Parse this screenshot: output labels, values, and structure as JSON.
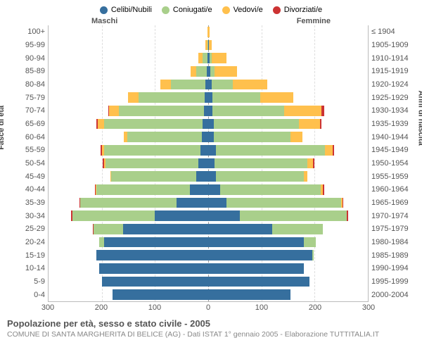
{
  "legend": {
    "items": [
      {
        "label": "Celibi/Nubili",
        "color": "#366f9e"
      },
      {
        "label": "Coniugati/e",
        "color": "#a9cf8b"
      },
      {
        "label": "Vedovi/e",
        "color": "#ffc04d"
      },
      {
        "label": "Divorziati/e",
        "color": "#cc3333"
      }
    ]
  },
  "gender_labels": {
    "male": "Maschi",
    "female": "Femmine"
  },
  "axis_titles": {
    "left": "Fasce di età",
    "right": "Anni di nascita"
  },
  "title": "Popolazione per età, sesso e stato civile - 2005",
  "subtitle": "COMUNE DI SANTA MARGHERITA DI BELICE (AG) - Dati ISTAT 1° gennaio 2005 - Elaborazione TUTTITALIA.IT",
  "x_axis": {
    "max": 300,
    "ticks": [
      300,
      200,
      100,
      0,
      100,
      200,
      300
    ]
  },
  "y_axis": {
    "age_labels": [
      "100+",
      "95-99",
      "90-94",
      "85-89",
      "80-84",
      "75-79",
      "70-74",
      "65-69",
      "60-64",
      "55-59",
      "50-54",
      "45-49",
      "40-44",
      "35-39",
      "30-34",
      "25-29",
      "20-24",
      "15-19",
      "10-14",
      "5-9",
      "0-4"
    ],
    "birth_labels": [
      "≤ 1904",
      "1905-1909",
      "1910-1914",
      "1915-1919",
      "1920-1924",
      "1925-1929",
      "1930-1934",
      "1935-1939",
      "1940-1944",
      "1945-1949",
      "1950-1954",
      "1955-1959",
      "1960-1964",
      "1965-1969",
      "1970-1974",
      "1975-1979",
      "1980-1984",
      "1985-1989",
      "1990-1994",
      "1995-1999",
      "2000-2004"
    ]
  },
  "colors": {
    "single": "#366f9e",
    "married": "#a9cf8b",
    "widowed": "#ffc04d",
    "divorced": "#cc3333",
    "grid": "#dddddd",
    "axis": "#bbbbbb",
    "text": "#555555",
    "background": "#ffffff"
  },
  "data": {
    "male": [
      {
        "single": 0,
        "married": 0,
        "widowed": 1,
        "divorced": 0
      },
      {
        "single": 0,
        "married": 2,
        "widowed": 3,
        "divorced": 0
      },
      {
        "single": 2,
        "married": 8,
        "widowed": 8,
        "divorced": 0
      },
      {
        "single": 3,
        "married": 20,
        "widowed": 10,
        "divorced": 0
      },
      {
        "single": 5,
        "married": 65,
        "widowed": 20,
        "divorced": 0
      },
      {
        "single": 6,
        "married": 125,
        "widowed": 20,
        "divorced": 0
      },
      {
        "single": 8,
        "married": 160,
        "widowed": 18,
        "divorced": 2
      },
      {
        "single": 10,
        "married": 185,
        "widowed": 12,
        "divorced": 3
      },
      {
        "single": 12,
        "married": 140,
        "widowed": 6,
        "divorced": 0
      },
      {
        "single": 15,
        "married": 180,
        "widowed": 4,
        "divorced": 3
      },
      {
        "single": 18,
        "married": 175,
        "widowed": 3,
        "divorced": 2
      },
      {
        "single": 22,
        "married": 160,
        "widowed": 2,
        "divorced": 0
      },
      {
        "single": 35,
        "married": 175,
        "widowed": 1,
        "divorced": 2
      },
      {
        "single": 60,
        "married": 180,
        "widowed": 0,
        "divorced": 2
      },
      {
        "single": 100,
        "married": 155,
        "widowed": 0,
        "divorced": 3
      },
      {
        "single": 160,
        "married": 55,
        "widowed": 0,
        "divorced": 2
      },
      {
        "single": 195,
        "married": 10,
        "widowed": 0,
        "divorced": 0
      },
      {
        "single": 210,
        "married": 0,
        "widowed": 0,
        "divorced": 0
      },
      {
        "single": 205,
        "married": 0,
        "widowed": 0,
        "divorced": 0
      },
      {
        "single": 200,
        "married": 0,
        "widowed": 0,
        "divorced": 0
      },
      {
        "single": 180,
        "married": 0,
        "widowed": 0,
        "divorced": 0
      }
    ],
    "female": [
      {
        "single": 0,
        "married": 0,
        "widowed": 2,
        "divorced": 0
      },
      {
        "single": 1,
        "married": 0,
        "widowed": 6,
        "divorced": 0
      },
      {
        "single": 3,
        "married": 3,
        "widowed": 28,
        "divorced": 0
      },
      {
        "single": 4,
        "married": 8,
        "widowed": 42,
        "divorced": 0
      },
      {
        "single": 6,
        "married": 40,
        "widowed": 65,
        "divorced": 0
      },
      {
        "single": 8,
        "married": 90,
        "widowed": 62,
        "divorced": 0
      },
      {
        "single": 8,
        "married": 135,
        "widowed": 70,
        "divorced": 5
      },
      {
        "single": 10,
        "married": 160,
        "widowed": 40,
        "divorced": 3
      },
      {
        "single": 10,
        "married": 145,
        "widowed": 22,
        "divorced": 0
      },
      {
        "single": 14,
        "married": 205,
        "widowed": 15,
        "divorced": 2
      },
      {
        "single": 12,
        "married": 175,
        "widowed": 10,
        "divorced": 3
      },
      {
        "single": 15,
        "married": 165,
        "widowed": 6,
        "divorced": 0
      },
      {
        "single": 22,
        "married": 190,
        "widowed": 3,
        "divorced": 3
      },
      {
        "single": 35,
        "married": 215,
        "widowed": 2,
        "divorced": 2
      },
      {
        "single": 60,
        "married": 200,
        "widowed": 1,
        "divorced": 2
      },
      {
        "single": 120,
        "married": 95,
        "widowed": 0,
        "divorced": 0
      },
      {
        "single": 180,
        "married": 22,
        "widowed": 0,
        "divorced": 0
      },
      {
        "single": 195,
        "married": 3,
        "widowed": 0,
        "divorced": 0
      },
      {
        "single": 180,
        "married": 0,
        "widowed": 0,
        "divorced": 0
      },
      {
        "single": 190,
        "married": 0,
        "widowed": 0,
        "divorced": 0
      },
      {
        "single": 155,
        "married": 0,
        "widowed": 0,
        "divorced": 0
      }
    ]
  }
}
